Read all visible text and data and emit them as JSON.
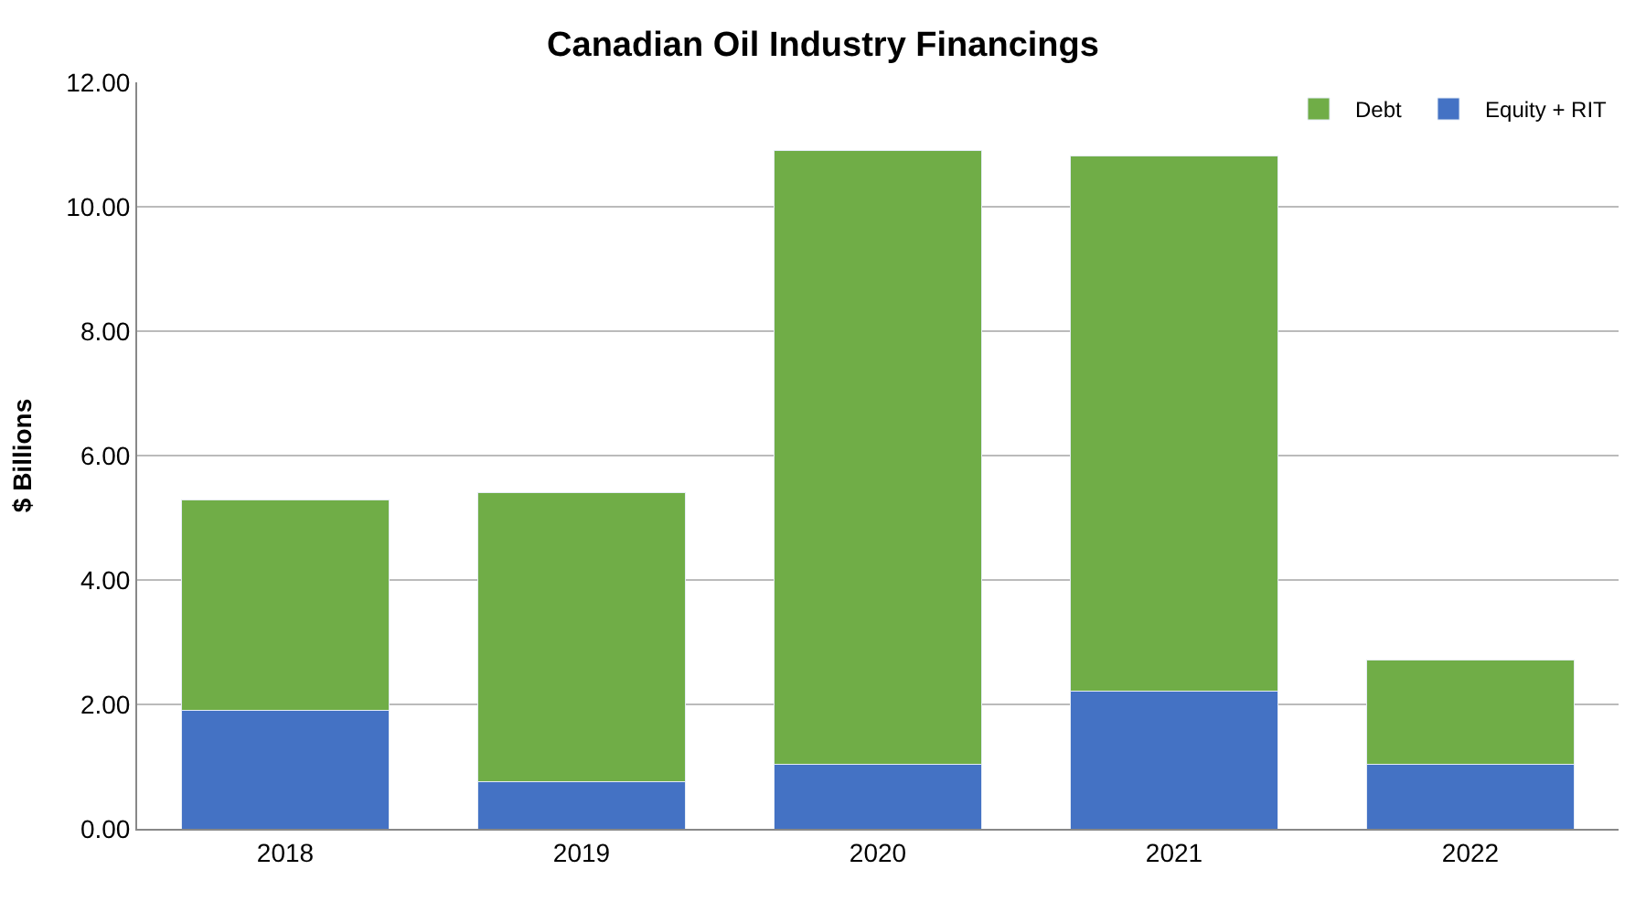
{
  "chart_data": {
    "type": "bar",
    "title": "Canadian Oil Industry Financings",
    "ylabel": "$ Billions",
    "categories": [
      "2018",
      "2019",
      "2020",
      "2021",
      "2022"
    ],
    "stacked": true,
    "series": [
      {
        "name": "Equity + RIT",
        "color": "#4472c4",
        "values": [
          1.91,
          0.76,
          1.03,
          2.22,
          1.03
        ]
      },
      {
        "name": "Debt",
        "color": "#70ad47",
        "values": [
          3.38,
          4.65,
          9.88,
          8.6,
          1.68
        ]
      }
    ],
    "ylim": [
      0,
      12
    ],
    "yticks": [
      {
        "value": 0,
        "label": "0.00"
      },
      {
        "value": 2,
        "label": "2.00"
      },
      {
        "value": 4,
        "label": "4.00"
      },
      {
        "value": 6,
        "label": "6.00"
      },
      {
        "value": 8,
        "label": "8.00"
      },
      {
        "value": 10,
        "label": "10.00"
      },
      {
        "value": 12,
        "label": "12.00"
      }
    ],
    "grid": "y",
    "legend": "top right"
  }
}
